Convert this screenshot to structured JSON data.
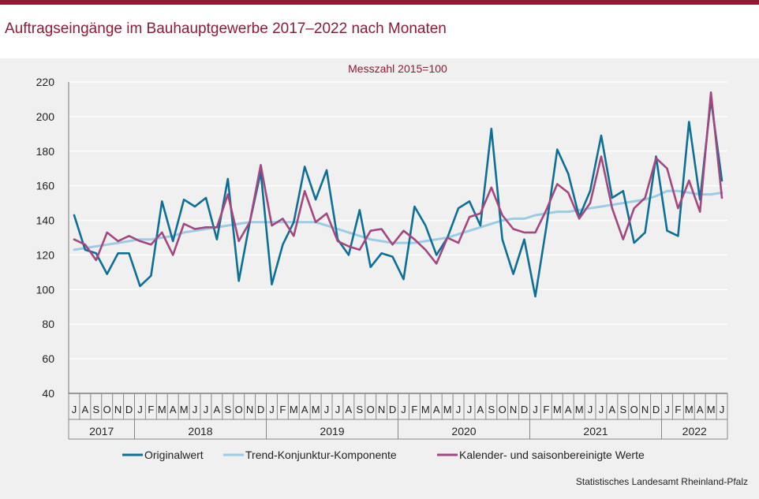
{
  "title": "Auftragseingänge im Bauhauptgewerbe 2017–2022 nach Monaten",
  "source": "Statistisches Landesamt  Rheinland-Pfalz",
  "chart_data": {
    "type": "line",
    "title": "Auftragseingänge im Bauhauptgewerbe 2017–2022 nach Monaten",
    "subtitle": "Messzahl  2015=100",
    "ylim": [
      40,
      220
    ],
    "yticks": [
      "40",
      "60",
      "80",
      "100",
      "120",
      "140",
      "160",
      "180",
      "200",
      "220"
    ],
    "grid": "horizontal",
    "legend_position": "bottom",
    "x_month_labels": [
      "J",
      "A",
      "S",
      "O",
      "N",
      "D",
      "J",
      "F",
      "M",
      "A",
      "M",
      "J",
      "J",
      "A",
      "S",
      "O",
      "N",
      "D",
      "J",
      "F",
      "M",
      "A",
      "M",
      "J",
      "J",
      "A",
      "S",
      "O",
      "N",
      "D",
      "J",
      "F",
      "M",
      "A",
      "M",
      "J",
      "J",
      "A",
      "S",
      "O",
      "N",
      "D",
      "J",
      "F",
      "M",
      "A",
      "M",
      "J",
      "J",
      "A",
      "S",
      "O",
      "N",
      "D",
      "J",
      "F",
      "M",
      "A",
      "M",
      "J"
    ],
    "x": [
      "2017-07",
      "2017-08",
      "2017-09",
      "2017-10",
      "2017-11",
      "2017-12",
      "2018-01",
      "2018-02",
      "2018-03",
      "2018-04",
      "2018-05",
      "2018-06",
      "2018-07",
      "2018-08",
      "2018-09",
      "2018-10",
      "2018-11",
      "2018-12",
      "2019-01",
      "2019-02",
      "2019-03",
      "2019-04",
      "2019-05",
      "2019-06",
      "2019-07",
      "2019-08",
      "2019-09",
      "2019-10",
      "2019-11",
      "2019-12",
      "2020-01",
      "2020-02",
      "2020-03",
      "2020-04",
      "2020-05",
      "2020-06",
      "2020-07",
      "2020-08",
      "2020-09",
      "2020-10",
      "2020-11",
      "2020-12",
      "2021-01",
      "2021-02",
      "2021-03",
      "2021-04",
      "2021-05",
      "2021-06",
      "2021-07",
      "2021-08",
      "2021-09",
      "2021-10",
      "2021-11",
      "2021-12",
      "2022-01",
      "2022-02",
      "2022-03",
      "2022-04",
      "2022-05",
      "2022-06"
    ],
    "years": [
      {
        "label": "2017",
        "months": 6
      },
      {
        "label": "2018",
        "months": 12
      },
      {
        "label": "2019",
        "months": 12
      },
      {
        "label": "2020",
        "months": 12
      },
      {
        "label": "2021",
        "months": 12
      },
      {
        "label": "2022",
        "months": 6
      }
    ],
    "series": [
      {
        "name": "Originalwert",
        "color": "#0e6f96",
        "values": [
          143,
          123,
          121,
          109,
          121,
          121,
          102,
          108,
          151,
          128,
          152,
          148,
          153,
          129,
          164,
          105,
          139,
          168,
          103,
          126,
          139,
          171,
          152,
          169,
          129,
          120,
          146,
          113,
          121,
          119,
          106,
          148,
          137,
          120,
          130,
          147,
          151,
          137,
          193,
          129,
          109,
          129,
          96,
          136,
          181,
          167,
          142,
          157,
          189,
          153,
          157,
          127,
          133,
          177,
          134,
          131,
          197,
          152,
          210,
          163
        ]
      },
      {
        "name": "Trend-Konjunktur-Komponente",
        "color": "#9ccbe3",
        "values": [
          123,
          124,
          125,
          126,
          127,
          128,
          129,
          129,
          130,
          131,
          133,
          134,
          135,
          136,
          137,
          138,
          139,
          139,
          139,
          139,
          139,
          139,
          139,
          137,
          135,
          133,
          131,
          129,
          128,
          127,
          127,
          127,
          128,
          129,
          130,
          132,
          134,
          136,
          138,
          140,
          141,
          141,
          143,
          144,
          145,
          145,
          146,
          147,
          148,
          149,
          150,
          151,
          152,
          154,
          157,
          157,
          156,
          155,
          155,
          156
        ]
      },
      {
        "name": "Kalender- und saisonbereinigte Werte",
        "color": "#a3487f",
        "values": [
          129,
          126,
          117,
          133,
          128,
          131,
          128,
          126,
          133,
          120,
          138,
          135,
          136,
          136,
          155,
          128,
          139,
          172,
          137,
          141,
          131,
          157,
          139,
          144,
          128,
          125,
          123,
          134,
          135,
          126,
          134,
          129,
          123,
          115,
          130,
          127,
          142,
          144,
          159,
          143,
          135,
          133,
          133,
          146,
          161,
          156,
          141,
          150,
          177,
          147,
          129,
          147,
          153,
          176,
          170,
          147,
          163,
          145,
          214,
          153
        ]
      }
    ]
  }
}
